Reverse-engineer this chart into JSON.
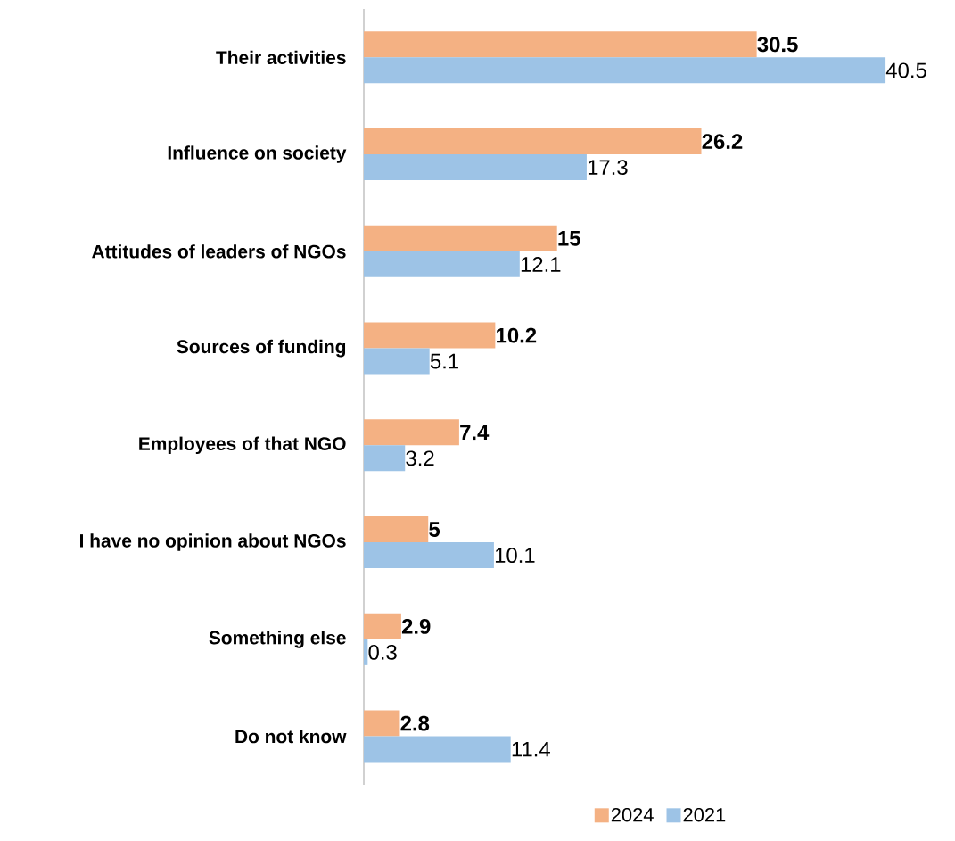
{
  "chart_data": {
    "type": "bar",
    "orientation": "horizontal",
    "categories": [
      "Their activities",
      "Influence on society",
      "Attitudes of leaders of NGOs",
      "Sources of funding",
      "Employees of that NGO",
      "I have no opinion about NGOs",
      "Something else",
      "Do not know"
    ],
    "series": [
      {
        "name": "2024",
        "color": "#f4b183",
        "values": [
          30.5,
          26.2,
          15,
          10.2,
          7.4,
          5,
          2.9,
          2.8
        ]
      },
      {
        "name": "2021",
        "color": "#9dc3e6",
        "values": [
          40.5,
          17.3,
          12.1,
          5.1,
          3.2,
          10.1,
          0.3,
          11.4
        ]
      }
    ],
    "data_labels": true,
    "legend": "bottom"
  }
}
